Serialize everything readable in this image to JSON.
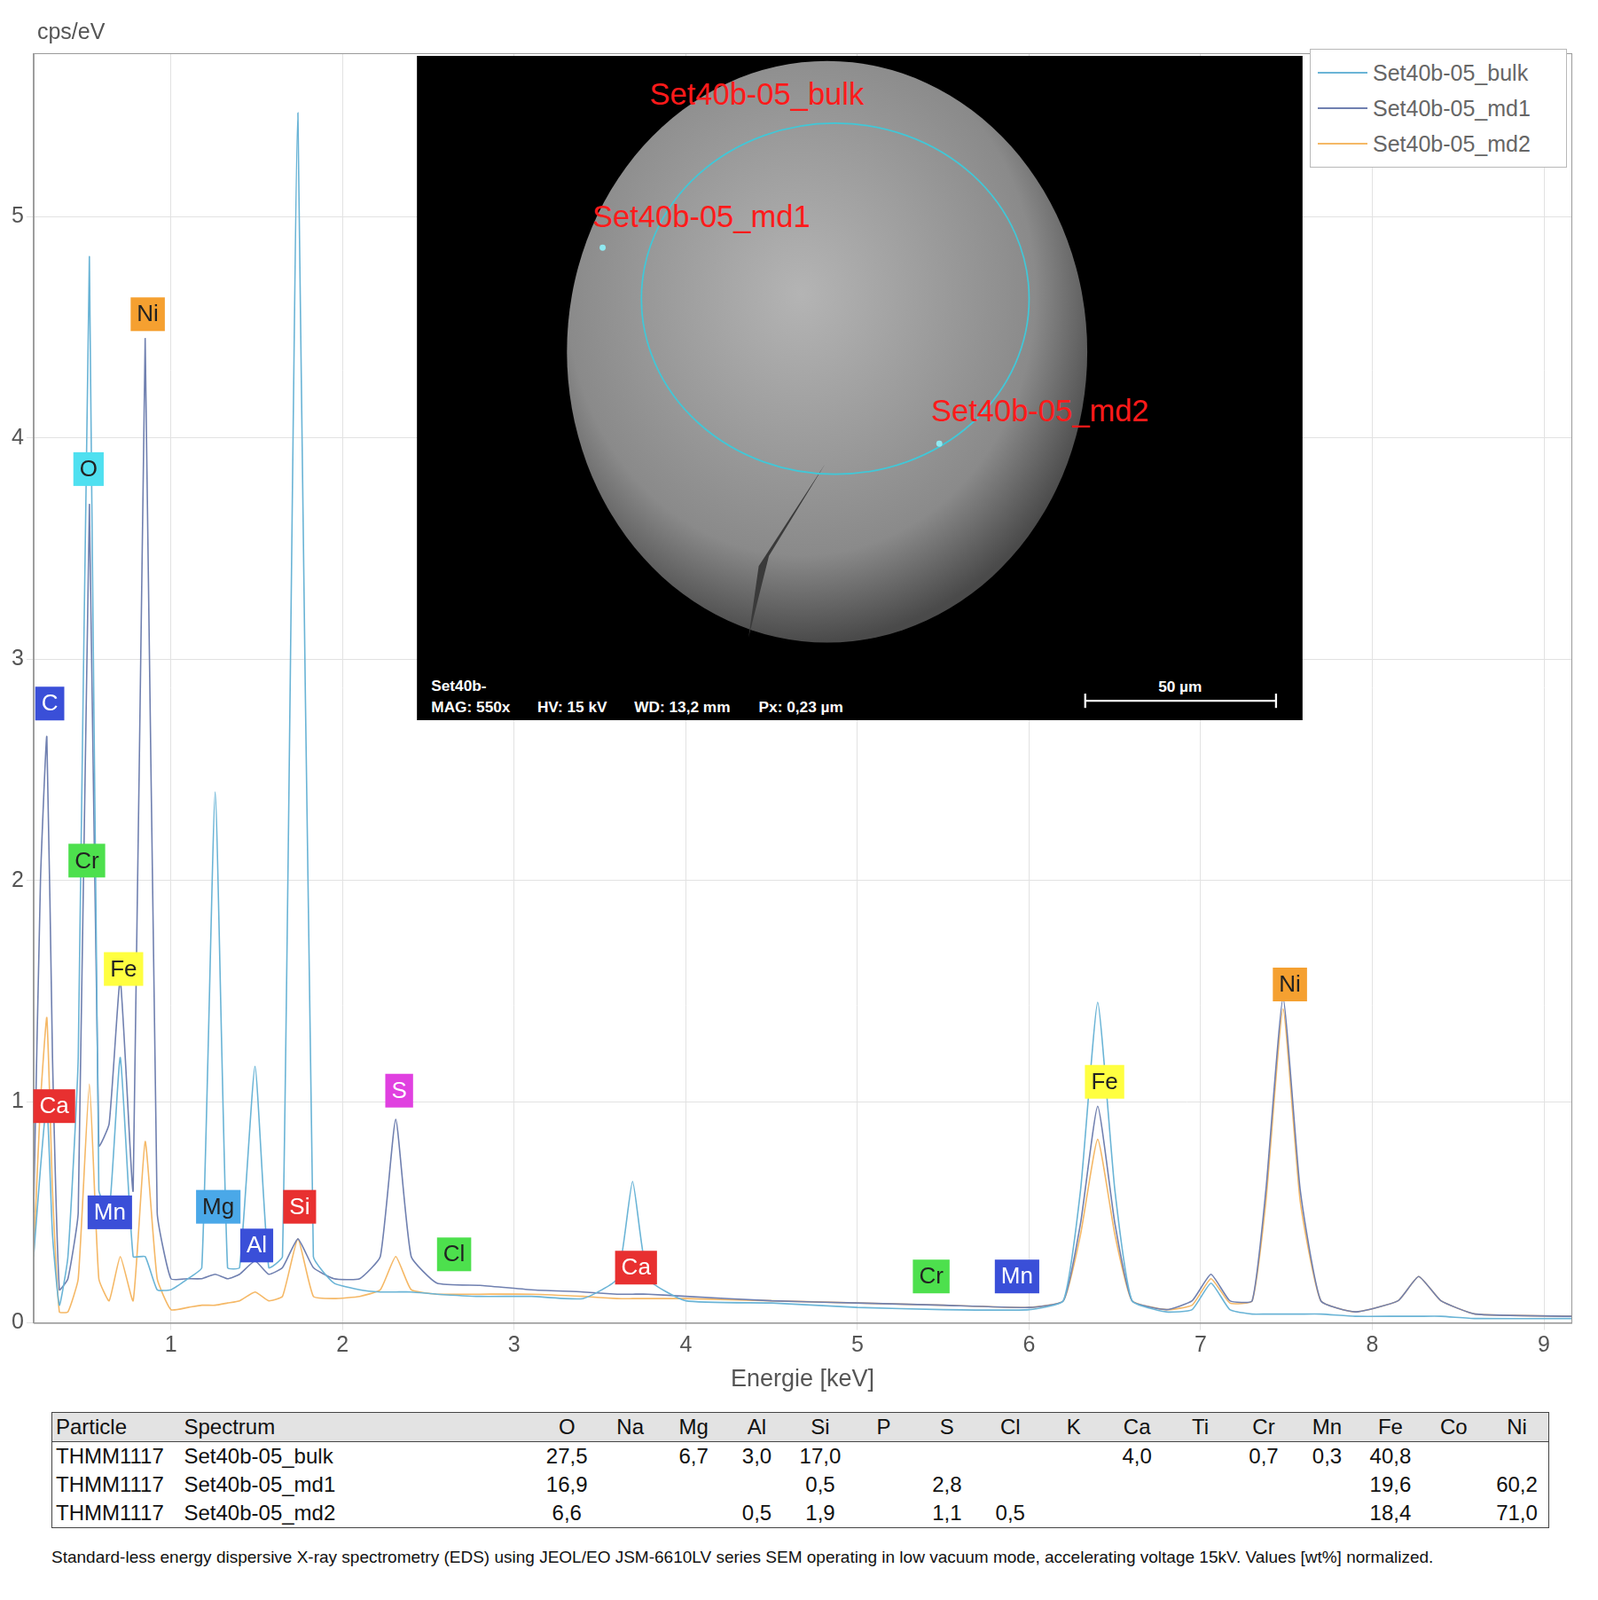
{
  "chart_data": {
    "type": "line",
    "x_label": "Energie [keV]",
    "y_label": "cps/eV",
    "xlim": [
      0.2,
      9.16
    ],
    "xticks": [
      1,
      2,
      3,
      4,
      5,
      6,
      7,
      8,
      9
    ],
    "ylim": [
      0,
      5.74
    ],
    "yticks": [
      0,
      1,
      2,
      3,
      4,
      5
    ],
    "grid": true,
    "legend": "upper right",
    "x": [
      0.2,
      0.24,
      0.277,
      0.31,
      0.35,
      0.4,
      0.46,
      0.525,
      0.58,
      0.64,
      0.705,
      0.78,
      0.85,
      0.92,
      1.0,
      1.1,
      1.18,
      1.258,
      1.33,
      1.4,
      1.49,
      1.57,
      1.65,
      1.74,
      1.83,
      1.95,
      2.1,
      2.22,
      2.31,
      2.4,
      2.55,
      2.8,
      3.1,
      3.4,
      3.6,
      3.69,
      3.78,
      4.0,
      4.5,
      5.0,
      5.5,
      6.0,
      6.2,
      6.3,
      6.4,
      6.5,
      6.6,
      6.8,
      6.95,
      7.06,
      7.17,
      7.3,
      7.38,
      7.48,
      7.58,
      7.7,
      7.9,
      8.15,
      8.27,
      8.4,
      8.6,
      9.16
    ],
    "series": [
      {
        "name": "Set40b-05_bulk",
        "color": "#6ab4d6",
        "values": [
          0.3,
          0.7,
          1.0,
          0.4,
          0.08,
          0.3,
          1.2,
          4.82,
          0.6,
          0.5,
          1.2,
          0.3,
          0.3,
          0.15,
          0.15,
          0.2,
          0.25,
          2.4,
          0.25,
          0.25,
          1.16,
          0.25,
          0.3,
          5.47,
          0.3,
          0.18,
          0.15,
          0.14,
          0.14,
          0.14,
          0.13,
          0.12,
          0.12,
          0.11,
          0.2,
          0.64,
          0.2,
          0.1,
          0.09,
          0.07,
          0.06,
          0.06,
          0.1,
          0.6,
          1.45,
          0.6,
          0.1,
          0.05,
          0.06,
          0.18,
          0.06,
          0.04,
          0.04,
          0.04,
          0.04,
          0.04,
          0.03,
          0.03,
          0.03,
          0.03,
          0.02,
          0.02
        ]
      },
      {
        "name": "Set40b-05_md1",
        "color": "#7080b0",
        "values": [
          0.5,
          2.0,
          2.65,
          1.2,
          0.15,
          0.2,
          0.5,
          3.7,
          0.8,
          0.9,
          1.55,
          0.6,
          4.45,
          0.5,
          0.2,
          0.2,
          0.2,
          0.22,
          0.2,
          0.22,
          0.28,
          0.22,
          0.25,
          0.38,
          0.25,
          0.2,
          0.2,
          0.3,
          0.92,
          0.3,
          0.18,
          0.17,
          0.15,
          0.14,
          0.13,
          0.13,
          0.13,
          0.12,
          0.1,
          0.09,
          0.08,
          0.07,
          0.1,
          0.45,
          0.98,
          0.45,
          0.1,
          0.06,
          0.1,
          0.22,
          0.1,
          0.1,
          0.6,
          1.47,
          0.6,
          0.1,
          0.05,
          0.1,
          0.21,
          0.1,
          0.04,
          0.03
        ]
      },
      {
        "name": "Set40b-05_md2",
        "color": "#f5b866",
        "values": [
          0.3,
          1.0,
          1.38,
          0.6,
          0.05,
          0.05,
          0.2,
          1.08,
          0.2,
          0.1,
          0.3,
          0.1,
          0.82,
          0.2,
          0.06,
          0.07,
          0.08,
          0.08,
          0.09,
          0.1,
          0.14,
          0.1,
          0.12,
          0.38,
          0.12,
          0.11,
          0.12,
          0.15,
          0.3,
          0.15,
          0.13,
          0.13,
          0.13,
          0.12,
          0.11,
          0.11,
          0.11,
          0.11,
          0.1,
          0.09,
          0.08,
          0.07,
          0.1,
          0.4,
          0.83,
          0.4,
          0.1,
          0.06,
          0.08,
          0.2,
          0.09,
          0.1,
          0.55,
          1.42,
          0.55,
          0.1,
          0.05,
          0.1,
          0.21,
          0.1,
          0.04,
          0.03
        ]
      }
    ],
    "peak_labels": [
      {
        "text": "C",
        "x": 0.294,
        "y": 2.8,
        "color": "#3a4fd8"
      },
      {
        "text": "O",
        "x": 0.52,
        "y": 3.86,
        "color": "#4fe0f0"
      },
      {
        "text": "Ni",
        "x": 0.865,
        "y": 4.56,
        "color": "#f5a030"
      },
      {
        "text": "Cr",
        "x": 0.51,
        "y": 2.09,
        "color": "#4de04d"
      },
      {
        "text": "Fe",
        "x": 0.724,
        "y": 1.6,
        "color": "#ffff40"
      },
      {
        "text": "Ca",
        "x": 0.32,
        "y": 0.98,
        "color": "#e83030"
      },
      {
        "text": "Mn",
        "x": 0.644,
        "y": 0.5,
        "color": "#3a4fd8"
      },
      {
        "text": "Mg",
        "x": 1.276,
        "y": 0.525,
        "color": "#4aa8e8"
      },
      {
        "text": "Al",
        "x": 1.5,
        "y": 0.35,
        "color": "#3a4fd8"
      },
      {
        "text": "Si",
        "x": 1.75,
        "y": 0.525,
        "color": "#e83030"
      },
      {
        "text": "S",
        "x": 2.33,
        "y": 1.05,
        "color": "#e040e0"
      },
      {
        "text": "Cl",
        "x": 2.65,
        "y": 0.31,
        "color": "#4de04d"
      },
      {
        "text": "Ca",
        "x": 3.71,
        "y": 0.25,
        "color": "#e83030"
      },
      {
        "text": "Cr",
        "x": 5.43,
        "y": 0.21,
        "color": "#4de04d"
      },
      {
        "text": "Mn",
        "x": 5.93,
        "y": 0.21,
        "color": "#3a4fd8"
      },
      {
        "text": "Fe",
        "x": 6.44,
        "y": 1.09,
        "color": "#ffff40"
      },
      {
        "text": "Ni",
        "x": 7.52,
        "y": 1.53,
        "color": "#f5a030"
      }
    ]
  },
  "inset": {
    "spot_labels": [
      "Set40b-05_bulk",
      "Set40b-05_md1",
      "Set40b-05_md2"
    ],
    "info_title": "Set40b-",
    "info_items": [
      "MAG: 550x",
      "HV: 15 kV",
      "WD: 13,2 mm",
      "Px: 0,23 µm"
    ],
    "scale_bar": "50 µm"
  },
  "table": {
    "columns": [
      "Particle",
      "Spectrum",
      "O",
      "Na",
      "Mg",
      "Al",
      "Si",
      "P",
      "S",
      "Cl",
      "K",
      "Ca",
      "Ti",
      "Cr",
      "Mn",
      "Fe",
      "Co",
      "Ni"
    ],
    "rows": [
      [
        "THMM1117",
        "Set40b-05_bulk",
        "27,5",
        null,
        "6,7",
        "3,0",
        "17,0",
        null,
        null,
        null,
        null,
        "4,0",
        null,
        "0,7",
        "0,3",
        "40,8",
        null,
        null
      ],
      [
        "THMM1117",
        "Set40b-05_md1",
        "16,9",
        null,
        null,
        null,
        "0,5",
        null,
        "2,8",
        null,
        null,
        null,
        null,
        null,
        null,
        "19,6",
        null,
        "60,2"
      ],
      [
        "THMM1117",
        "Set40b-05_md2",
        "6,6",
        null,
        null,
        "0,5",
        "1,9",
        null,
        "1,1",
        "0,5",
        null,
        null,
        null,
        null,
        null,
        "18,4",
        null,
        "71,0"
      ]
    ]
  },
  "caption": "Standard-less energy dispersive X-ray spectrometry (EDS) using JEOL/EO JSM-6610LV series SEM operating in low vacuum mode, accelerating voltage 15kV. Values [wt%] normalized."
}
